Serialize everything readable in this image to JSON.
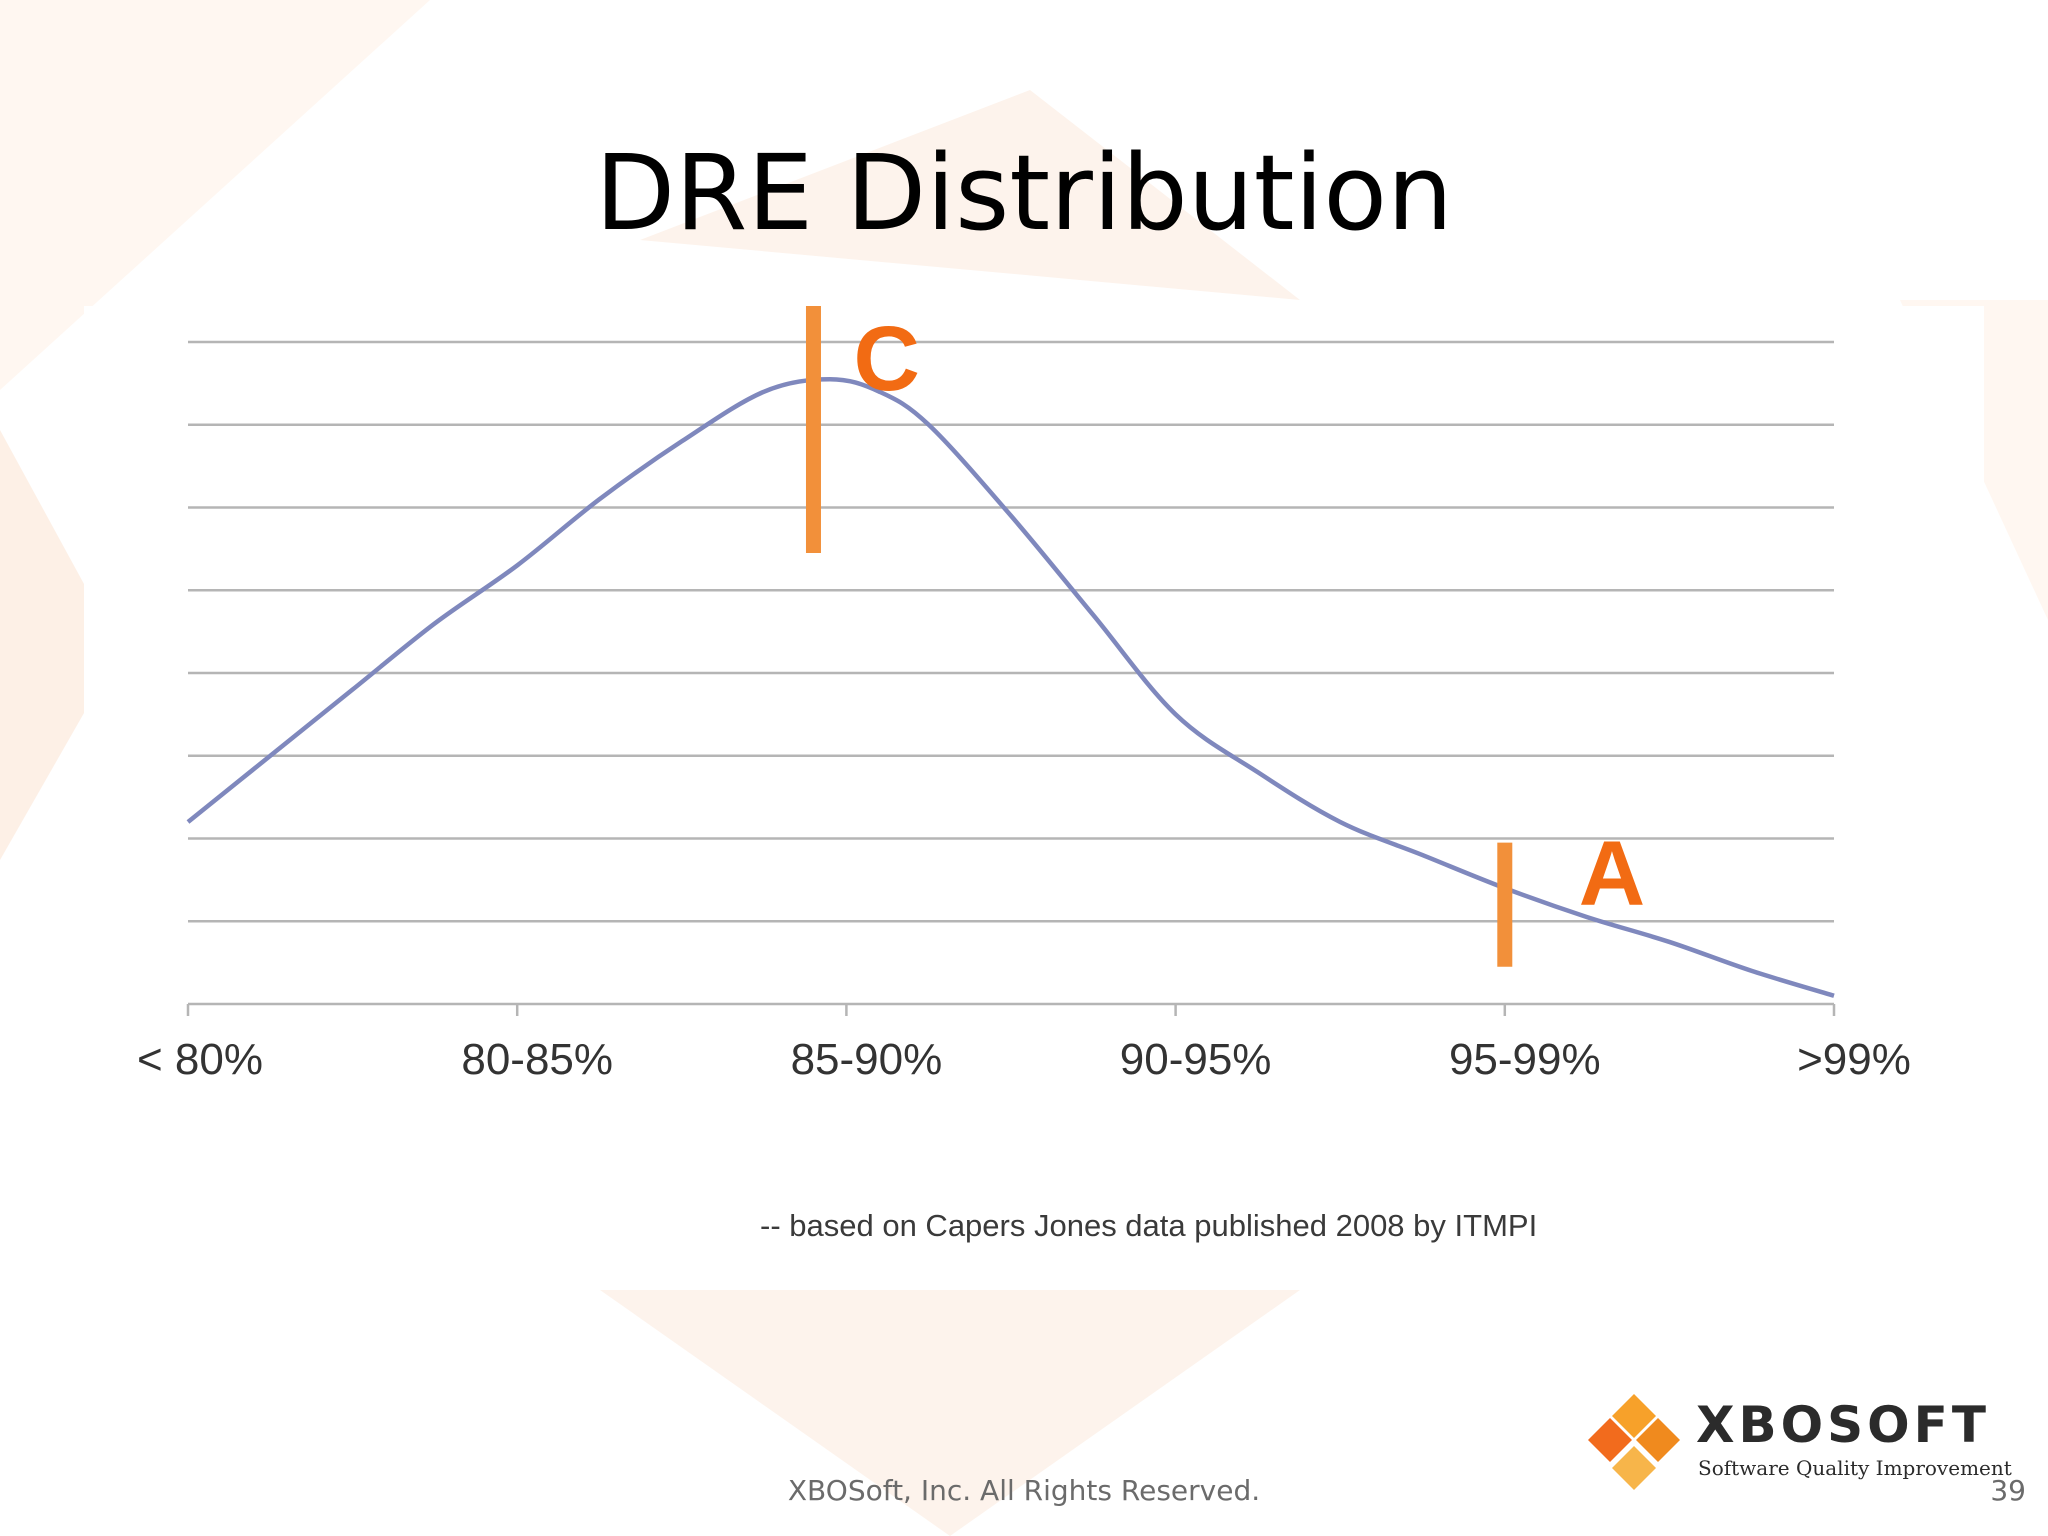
{
  "slide": {
    "title": "DRE Distribution",
    "source_note": "-- based on Capers Jones data published 2008 by ITMPI",
    "footer": "XBOSoft, Inc. All Rights Reserved.",
    "page_number": "39"
  },
  "logo": {
    "name": "XBOSOFT",
    "tagline": "Software Quality Improvement",
    "icon": "diamond-logo-icon",
    "colors": [
      "#f7a12a",
      "#f08a1e",
      "#f26b1d",
      "#f7b54a"
    ]
  },
  "colors": {
    "curve": "#7f88bd",
    "gridline": "#b5b5b5",
    "marker": "#f2903a",
    "marker_label": "#f26b13",
    "tick_label": "#333333"
  },
  "chart_data": {
    "type": "line",
    "title": "",
    "xlabel": "",
    "ylabel": "",
    "categories": [
      "< 80%",
      "80-85%",
      "85-90%",
      "90-95%",
      "95-99%",
      ">99%"
    ],
    "x_range": [
      0,
      5
    ],
    "ylim": [
      0,
      8
    ],
    "grid": true,
    "gridline_count": 8,
    "series": [
      {
        "x": [
          0,
          0.25,
          0.5,
          0.75,
          1,
          1.25,
          1.5,
          1.75,
          1.95,
          2.1,
          2.25,
          2.5,
          2.75,
          3,
          3.25,
          3.5,
          3.75,
          4,
          4.25,
          4.5,
          4.75,
          5
        ],
        "values": [
          2.2,
          3.0,
          3.8,
          4.6,
          5.3,
          6.1,
          6.8,
          7.4,
          7.55,
          7.4,
          7.0,
          5.9,
          4.7,
          3.5,
          2.8,
          2.2,
          1.8,
          1.4,
          1.05,
          0.75,
          0.4,
          0.1
        ]
      }
    ],
    "annotations": [
      {
        "label": "C",
        "x": 1.9
      },
      {
        "label": "A",
        "x": 4.0
      }
    ]
  }
}
